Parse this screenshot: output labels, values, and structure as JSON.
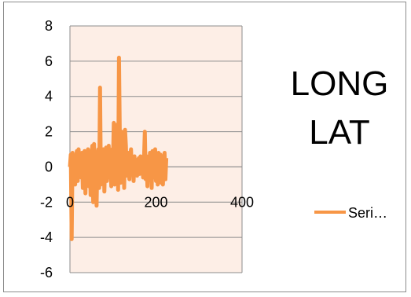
{
  "chart_data": {
    "type": "line",
    "title_lines": [
      "LONG",
      "LAT"
    ],
    "xlabel": "",
    "ylabel": "",
    "xlim": [
      0,
      400
    ],
    "ylim": [
      -6,
      8
    ],
    "x_ticks": [
      "0",
      "200",
      "400"
    ],
    "y_ticks": [
      "8",
      "6",
      "4",
      "2",
      "0",
      "-2",
      "-4",
      "-6"
    ],
    "grid": "horizontal",
    "plot_background": "#fdeee6",
    "legend_position": "right",
    "series": [
      {
        "name": "Seri…",
        "color": "#f79646",
        "x": [
          0,
          2,
          4,
          6,
          8,
          10,
          12,
          14,
          16,
          18,
          20,
          22,
          24,
          26,
          28,
          30,
          32,
          34,
          36,
          38,
          40,
          42,
          44,
          46,
          48,
          50,
          52,
          54,
          56,
          58,
          60,
          62,
          64,
          66,
          68,
          70,
          72,
          74,
          76,
          78,
          80,
          82,
          84,
          86,
          88,
          90,
          92,
          94,
          96,
          98,
          100,
          102,
          104,
          106,
          108,
          110,
          112,
          114,
          116,
          118,
          120,
          122,
          124,
          126,
          128,
          130,
          132,
          134,
          136,
          138,
          140,
          142,
          144,
          146,
          148,
          150,
          152,
          154,
          156,
          158,
          160,
          162,
          164,
          166,
          168,
          170,
          172,
          174,
          176,
          178,
          180,
          182,
          184,
          186,
          188,
          190,
          192,
          194,
          196,
          198,
          200,
          202,
          204,
          206,
          208,
          210,
          212,
          214,
          216,
          218,
          220,
          222,
          224
        ],
        "y": [
          0,
          0.7,
          -4.1,
          0.8,
          -0.5,
          0.6,
          -1.0,
          0.5,
          0.9,
          -0.8,
          1.0,
          -0.3,
          0.4,
          -0.6,
          0.8,
          -1.2,
          0.6,
          0.9,
          -1.5,
          0.7,
          -0.4,
          1.0,
          -1.1,
          0.5,
          -1.6,
          0.6,
          1.2,
          -2.0,
          1.3,
          -0.9,
          0.8,
          -2.2,
          0.6,
          1.0,
          -1.2,
          4.5,
          -1.0,
          0.8,
          -0.5,
          1.0,
          -1.4,
          0.7,
          1.1,
          -0.8,
          0.9,
          1.2,
          -0.6,
          0.8,
          -1.1,
          1.0,
          0.4,
          2.5,
          -1.0,
          1.1,
          -0.7,
          2.4,
          -1.3,
          6.2,
          1.6,
          -0.9,
          2.0,
          -0.6,
          1.0,
          -1.2,
          2.1,
          1.2,
          -0.5,
          0.6,
          0.8,
          -0.7,
          0.5,
          1.0,
          -0.4,
          0.5,
          -0.8,
          0.6,
          -0.3,
          0.4,
          -0.5,
          0.3,
          0.5,
          -0.4,
          0.6,
          -0.3,
          0.5,
          -0.6,
          0.4,
          2.0,
          -0.7,
          0.6,
          -1.1,
          0.5,
          -0.4,
          0.8,
          0.6,
          -1.2,
          0.9,
          -0.6,
          0.4,
          1.0,
          -0.8,
          0.6,
          -1.0,
          0.8,
          -0.5,
          0.7,
          -0.9,
          0.6,
          -1.0,
          0.5,
          0.8,
          -0.7,
          0.5
        ]
      }
    ]
  }
}
